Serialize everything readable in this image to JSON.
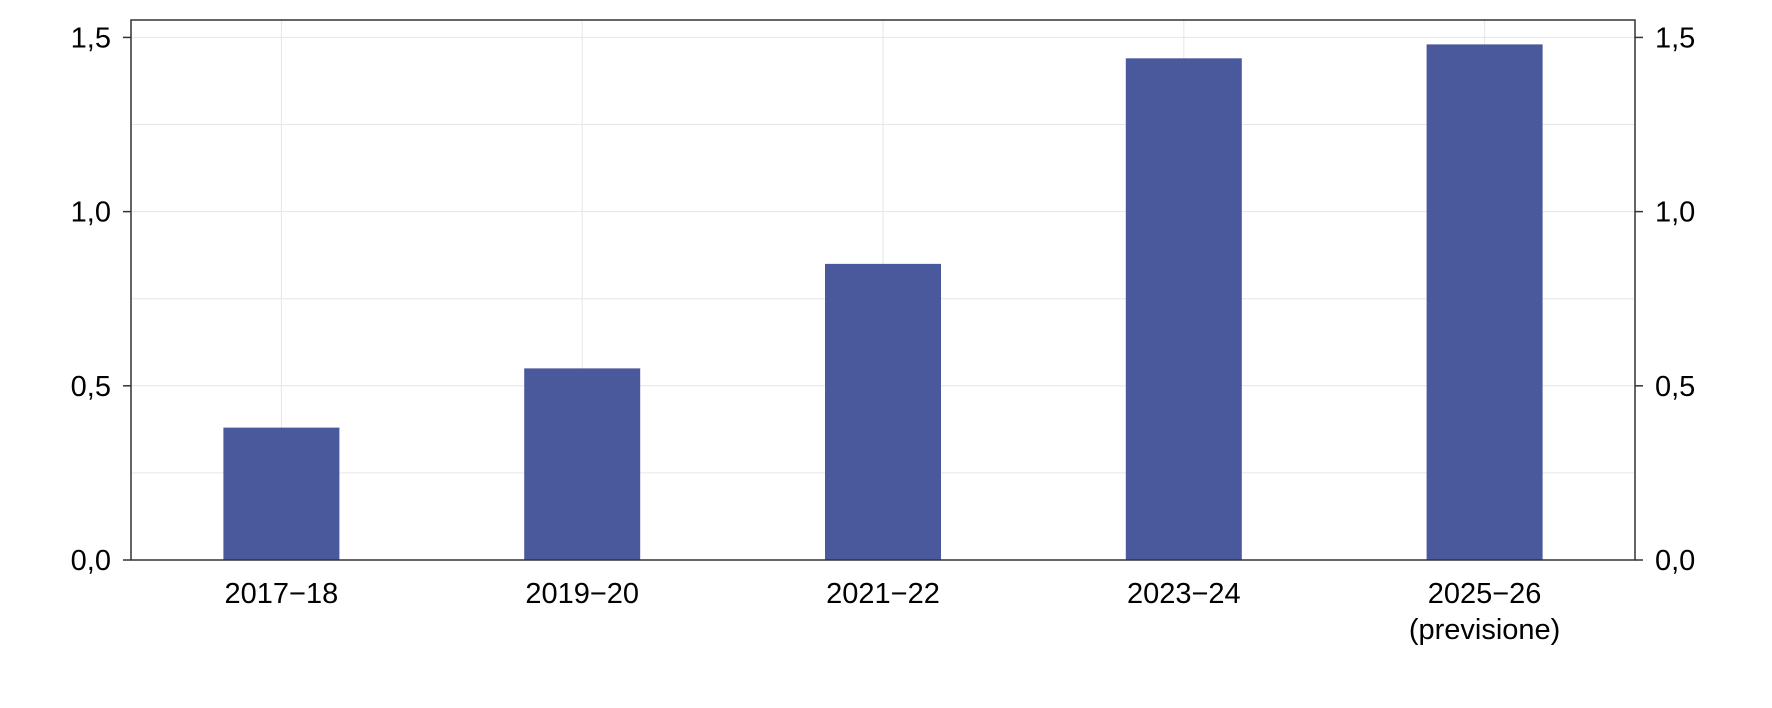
{
  "chart_data": {
    "type": "bar",
    "categories": [
      "2017−18",
      "2019−20",
      "2021−22",
      "2023−24",
      "2025−26"
    ],
    "category_notes": [
      "",
      "",
      "",
      "",
      "(previsione)"
    ],
    "values": [
      0.38,
      0.55,
      0.85,
      1.44,
      1.48
    ],
    "ylim": [
      0,
      1.55
    ],
    "yticks": [
      0,
      0.5,
      1.0,
      1.5
    ],
    "ytick_labels": [
      "0,0",
      "0,5",
      "1,0",
      "1,5"
    ],
    "y_axis_both_sides": true,
    "grid": true,
    "title": "",
    "xlabel": "",
    "ylabel": "",
    "colors": {
      "bar": "#4a589c",
      "grid": "#e6e6e6",
      "frame": "#333333"
    }
  }
}
